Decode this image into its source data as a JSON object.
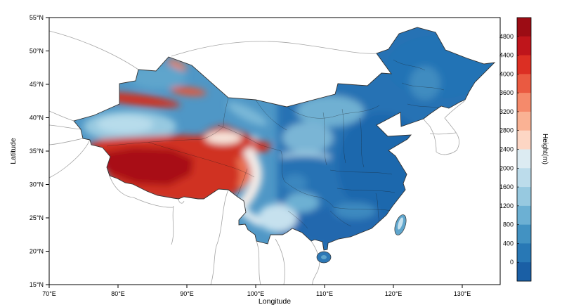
{
  "figure": {
    "background": "#ffffff",
    "frame_color": "#000000"
  },
  "axes": {
    "xlabel": "Longitude",
    "ylabel": "Latitude",
    "x_ticks": [
      "70°E",
      "80°E",
      "90°E",
      "100°E",
      "110°E",
      "120°E",
      "130°E"
    ],
    "y_ticks": [
      "15°N",
      "20°N",
      "25°N",
      "30°N",
      "35°N",
      "40°N",
      "45°N",
      "50°N",
      "55°N"
    ]
  },
  "colorbar": {
    "title": "Height(m)",
    "tick_values": [
      "4800",
      "4400",
      "4000",
      "3600",
      "3200",
      "2800",
      "2400",
      "2000",
      "1600",
      "1200",
      "800",
      "400",
      "0"
    ],
    "colors_top_to_bottom": [
      "#9c0c14",
      "#bf151b",
      "#dc2f23",
      "#ea5a41",
      "#f58a6b",
      "#fab294",
      "#fdd6c4",
      "#dcebf2",
      "#bcdceb",
      "#97c9e0",
      "#6cb0d3",
      "#4292c2",
      "#2878b5",
      "#1a5fa5"
    ]
  },
  "map": {
    "subject": "Elevation of China",
    "high_elevation_color": "#c5161d",
    "low_elevation_color": "#2878b5"
  }
}
